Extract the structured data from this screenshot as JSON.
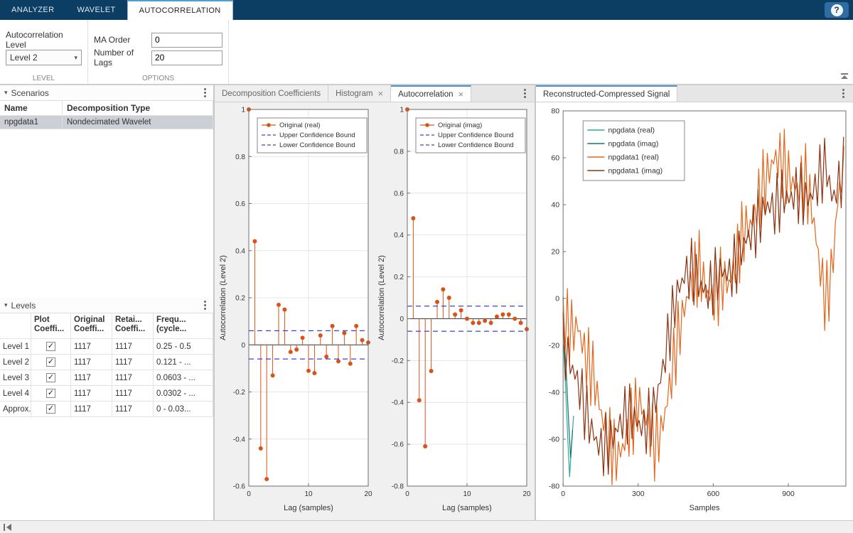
{
  "ribbon": {
    "tabs": [
      {
        "label": "ANALYZER",
        "active": false
      },
      {
        "label": "WAVELET",
        "active": false
      },
      {
        "label": "AUTOCORRELATION",
        "active": true
      }
    ],
    "help_label": "?"
  },
  "toolstrip": {
    "autocorrelation_level_label": "Autocorrelation Level",
    "level_dropdown_value": "Level 2",
    "level_section_label": "LEVEL",
    "ma_order_label": "MA Order",
    "ma_order_value": "0",
    "number_of_lags_label": "Number of Lags",
    "number_of_lags_value": "20",
    "options_section_label": "OPTIONS"
  },
  "scenarios_panel": {
    "title": "Scenarios",
    "columns": [
      "Name",
      "Decomposition Type"
    ],
    "rows": [
      {
        "name": "npgdata1",
        "decomposition_type": "Nondecimated Wavelet",
        "selected": true
      }
    ]
  },
  "levels_panel": {
    "title": "Levels",
    "columns": [
      [
        "",
        ""
      ],
      [
        "Plot",
        "Coeffi..."
      ],
      [
        "Original",
        "Coeffi..."
      ],
      [
        "Retai...",
        "Coeffi..."
      ],
      [
        "Frequ...",
        "(cycle..."
      ]
    ],
    "rows": [
      {
        "label": "Level 1",
        "plot_checked": true,
        "original_coefficients": "1117",
        "retained_coefficients": "1117",
        "frequency_range": "0.25 - 0.5"
      },
      {
        "label": "Level 2",
        "plot_checked": true,
        "original_coefficients": "1117",
        "retained_coefficients": "1117",
        "frequency_range": "0.121 - ..."
      },
      {
        "label": "Level 3",
        "plot_checked": true,
        "original_coefficients": "1117",
        "retained_coefficients": "1117",
        "frequency_range": "0.0603 - ..."
      },
      {
        "label": "Level 4",
        "plot_checked": true,
        "original_coefficients": "1117",
        "retained_coefficients": "1117",
        "frequency_range": "0.0302 - ..."
      },
      {
        "label": "Approx.",
        "plot_checked": true,
        "original_coefficients": "1117",
        "retained_coefficients": "1117",
        "frequency_range": "0 - 0.03..."
      }
    ]
  },
  "center_tabs": [
    {
      "label": "Decomposition Coefficients",
      "closable": false,
      "active": false
    },
    {
      "label": "Histogram",
      "closable": true,
      "active": false
    },
    {
      "label": "Autocorrelation",
      "closable": true,
      "active": true
    }
  ],
  "right_tabs": [
    {
      "label": "Reconstructed-Compressed Signal",
      "closable": false,
      "active": true
    }
  ],
  "chart_data": [
    {
      "id": "autocorrelation-real",
      "type": "stem",
      "ylabel": "Autocorrelation (Level 2)",
      "xlabel": "Lag (samples)",
      "xlim": [
        0,
        20
      ],
      "ylim": [
        -0.6,
        1
      ],
      "xticks": [
        0,
        10,
        20
      ],
      "ytick_step": 0.2,
      "grid": true,
      "legend": [
        "Original (real)",
        "Upper Confidence Bound",
        "Lower Confidence Bound"
      ],
      "stem_color": "#D95319",
      "bound_color": "#4040CE",
      "upper_confidence_bound": 0.06,
      "lower_confidence_bound": -0.06,
      "lags": [
        0,
        1,
        2,
        3,
        4,
        5,
        6,
        7,
        8,
        9,
        10,
        11,
        12,
        13,
        14,
        15,
        16,
        17,
        18,
        19,
        20
      ],
      "values": [
        1,
        0.44,
        -0.44,
        -0.57,
        -0.13,
        0.17,
        0.15,
        -0.03,
        -0.02,
        0.03,
        -0.11,
        -0.12,
        0.04,
        -0.05,
        0.08,
        -0.07,
        0.05,
        -0.08,
        0.08,
        0.02,
        0.01
      ]
    },
    {
      "id": "autocorrelation-imag",
      "type": "stem",
      "ylabel": "Autocorrelation (Level 2)",
      "xlabel": "Lag (samples)",
      "xlim": [
        0,
        20
      ],
      "ylim": [
        -0.8,
        1
      ],
      "xticks": [
        0,
        10,
        20
      ],
      "ytick_step": 0.2,
      "grid": true,
      "legend": [
        "Original (imag)",
        "Upper Confidence Bound",
        "Lower Confidence Bound"
      ],
      "stem_color": "#D95319",
      "bound_color": "#4040CE",
      "upper_confidence_bound": 0.06,
      "lower_confidence_bound": -0.06,
      "lags": [
        0,
        1,
        2,
        3,
        4,
        5,
        6,
        7,
        8,
        9,
        10,
        11,
        12,
        13,
        14,
        15,
        16,
        17,
        18,
        19,
        20
      ],
      "values": [
        1,
        0.48,
        -0.39,
        -0.61,
        -0.25,
        0.08,
        0.14,
        0.1,
        0.02,
        0.04,
        0,
        -0.02,
        -0.02,
        -0.01,
        -0.02,
        0.01,
        0.02,
        0.02,
        0,
        -0.02,
        -0.05
      ]
    },
    {
      "id": "reconstructed-compressed-signal",
      "type": "line",
      "xlabel": "Samples",
      "xlim": [
        0,
        1130
      ],
      "ylim": [
        -80,
        80
      ],
      "xticks": [
        0,
        300,
        600,
        900
      ],
      "ytick_step": 20,
      "grid": false,
      "legend": [
        "npgdata (real)",
        "npgdata (imag)",
        "npgdata1 (real)",
        "npgdata1 (imag)"
      ],
      "series": [
        {
          "name": "npgdata (real)",
          "color": "#2BA8A0",
          "points": [
            [
              2,
              -20
            ],
            [
              10,
              -38
            ],
            [
              18,
              -58
            ],
            [
              26,
              -76
            ],
            [
              34,
              -62
            ],
            [
              42,
              -50
            ]
          ]
        },
        {
          "name": "npgdata (imag)",
          "color": "#13756E",
          "points": [
            [
              2,
              -12
            ],
            [
              12,
              -30
            ],
            [
              22,
              -52
            ],
            [
              30,
              -68
            ],
            [
              38,
              -56
            ]
          ]
        },
        {
          "name": "npgdata1 (real)",
          "color": "#E5661B",
          "approximation": "oscillation_envelope",
          "osc_amplitude": 16,
          "osc_period": 17,
          "phase": 0,
          "mean": [
            [
              0,
              -8
            ],
            [
              30,
              -14
            ],
            [
              60,
              -12
            ],
            [
              90,
              -25
            ],
            [
              120,
              -32
            ],
            [
              150,
              -48
            ],
            [
              180,
              -60
            ],
            [
              215,
              -68
            ],
            [
              245,
              -62
            ],
            [
              275,
              -52
            ],
            [
              305,
              -44
            ],
            [
              335,
              -52
            ],
            [
              365,
              -62
            ],
            [
              395,
              -56
            ],
            [
              425,
              -38
            ],
            [
              455,
              -18
            ],
            [
              485,
              -4
            ],
            [
              515,
              8
            ],
            [
              545,
              14
            ],
            [
              575,
              2
            ],
            [
              605,
              0
            ],
            [
              635,
              8
            ],
            [
              665,
              6
            ],
            [
              695,
              18
            ],
            [
              725,
              30
            ],
            [
              755,
              32
            ],
            [
              785,
              44
            ],
            [
              815,
              52
            ],
            [
              845,
              60
            ],
            [
              875,
              58
            ],
            [
              905,
              52
            ],
            [
              935,
              46
            ],
            [
              965,
              52
            ],
            [
              995,
              38
            ],
            [
              1025,
              14
            ],
            [
              1050,
              -2
            ],
            [
              1075,
              12
            ],
            [
              1100,
              45
            ],
            [
              1130,
              58
            ]
          ]
        },
        {
          "name": "npgdata1 (imag)",
          "color": "#8E3310",
          "approximation": "oscillation_envelope",
          "osc_amplitude": 14,
          "osc_period": 19,
          "phase": 1.6,
          "mean": [
            [
              0,
              -20
            ],
            [
              30,
              -28
            ],
            [
              60,
              -36
            ],
            [
              90,
              -48
            ],
            [
              120,
              -58
            ],
            [
              150,
              -64
            ],
            [
              185,
              -62
            ],
            [
              220,
              -55
            ],
            [
              255,
              -48
            ],
            [
              290,
              -52
            ],
            [
              325,
              -56
            ],
            [
              360,
              -48
            ],
            [
              395,
              -32
            ],
            [
              425,
              -14
            ],
            [
              455,
              2
            ],
            [
              485,
              10
            ],
            [
              515,
              12
            ],
            [
              545,
              6
            ],
            [
              575,
              2
            ],
            [
              605,
              8
            ],
            [
              635,
              12
            ],
            [
              665,
              10
            ],
            [
              695,
              16
            ],
            [
              725,
              24
            ],
            [
              755,
              28
            ],
            [
              785,
              34
            ],
            [
              815,
              40
            ],
            [
              845,
              38
            ],
            [
              875,
              44
            ],
            [
              905,
              42
            ],
            [
              935,
              46
            ],
            [
              965,
              42
            ],
            [
              995,
              44
            ],
            [
              1025,
              52
            ],
            [
              1050,
              58
            ],
            [
              1075,
              42
            ],
            [
              1100,
              48
            ],
            [
              1130,
              58
            ]
          ]
        }
      ]
    }
  ]
}
